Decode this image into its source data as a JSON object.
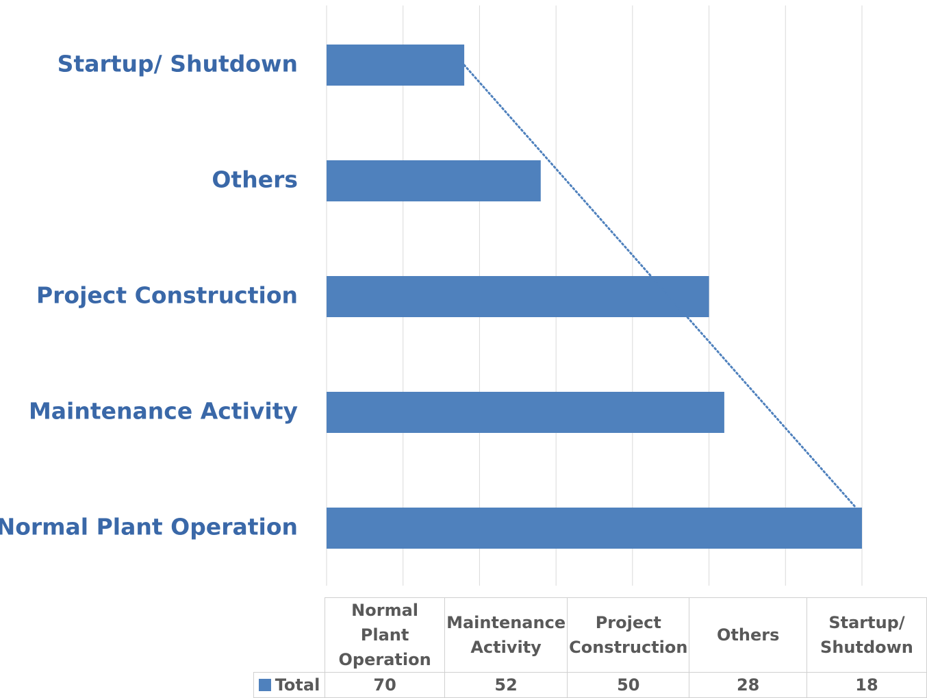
{
  "chart_data": {
    "type": "bar",
    "orientation": "horizontal",
    "categories": [
      "Normal Plant Operation",
      "Maintenance Activity",
      "Project Construction",
      "Others",
      "Startup/ Shutdown"
    ],
    "series": [
      {
        "name": "Total",
        "color": "#4f81bd",
        "values": [
          70,
          52,
          50,
          28,
          18
        ]
      }
    ],
    "xlim": [
      0,
      70
    ],
    "xticks": [
      0,
      10,
      20,
      30,
      40,
      50,
      60,
      70
    ],
    "grid": true,
    "trendline": "linear",
    "data_table": true
  }
}
